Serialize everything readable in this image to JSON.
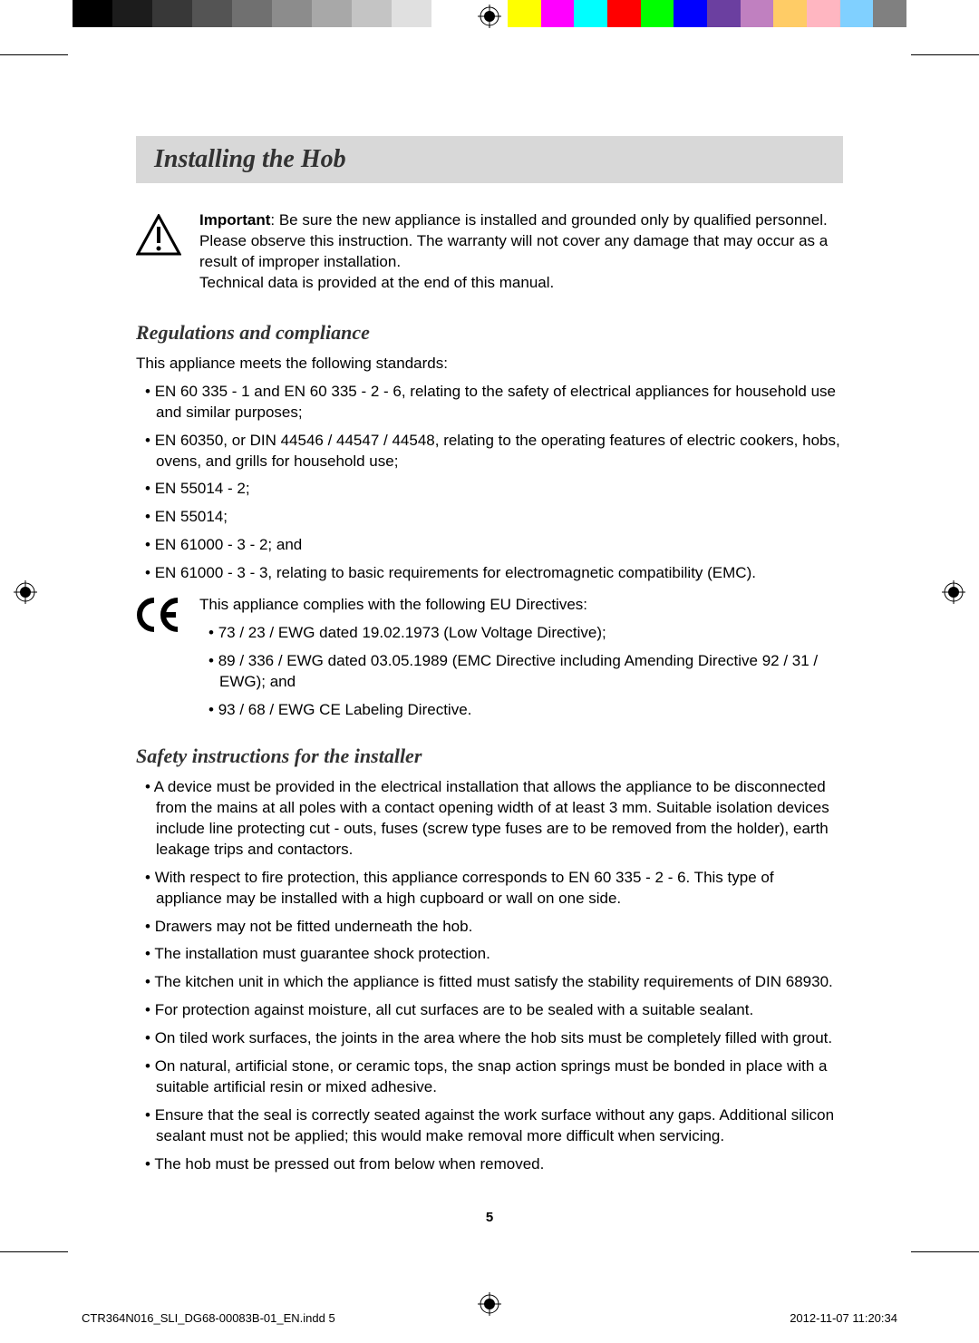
{
  "colorbar": {
    "grays": [
      "#000000",
      "#1c1c1c",
      "#383838",
      "#545454",
      "#707070",
      "#8c8c8c",
      "#a8a8a8",
      "#c4c4c4",
      "#e0e0e0",
      "#ffffff"
    ],
    "colors": [
      "#ffff00",
      "#ff00ff",
      "#00ffff",
      "#ff0000",
      "#00ff00",
      "#0000ff",
      "#6b3fa0",
      "#c080c0",
      "#ffcc66",
      "#ffb6c1",
      "#80d0ff",
      "#808080"
    ]
  },
  "title": "Installing the Hob",
  "important": {
    "label": "Important",
    "line1": ": Be sure the new appliance is installed and grounded only by qualified personnel.",
    "line2": "Please observe this instruction. The warranty will not cover any damage that may occur as a result of improper installation.",
    "line3": "Technical data is provided at the end of this manual."
  },
  "regulations": {
    "heading": "Regulations and compliance",
    "intro": "This appliance meets the following standards:",
    "items": [
      "EN 60 335 - 1 and EN 60 335 - 2 - 6, relating to the safety of electrical appliances for household use and similar purposes;",
      "EN 60350, or DIN 44546 / 44547 / 44548, relating to the operating features of electric cookers, hobs, ovens, and grills for household use;",
      "EN 55014 - 2;",
      "EN 55014;",
      "EN 61000 - 3 - 2; and",
      "EN 61000 - 3 - 3, relating to basic requirements for electromagnetic compatibility (EMC)."
    ],
    "ce_intro": "This appliance complies with the following EU Directives:",
    "ce_items": [
      "73 / 23 / EWG dated 19.02.1973 (Low Voltage Directive);",
      "89 / 336 / EWG dated 03.05.1989 (EMC Directive including Amending Directive 92 / 31 / EWG); and",
      "93 / 68 / EWG CE Labeling Directive."
    ]
  },
  "safety": {
    "heading": "Safety instructions for the installer",
    "items": [
      "A device must be provided in the electrical installation that allows the appliance to be disconnected from the mains at all poles with a contact opening width of at least 3 mm. Suitable isolation devices include line protecting cut - outs, fuses (screw type fuses are to be removed from the holder), earth leakage trips and contactors.",
      "With respect to fire protection, this appliance corresponds to EN 60 335 - 2 - 6. This type of appliance may be installed with a high cupboard or wall on one side.",
      "Drawers may not be fitted underneath the hob.",
      "The installation must guarantee shock protection.",
      "The kitchen unit in which the appliance is fitted must satisfy the stability requirements of DIN 68930.",
      "For protection against moisture, all cut surfaces are to be sealed with a suitable sealant.",
      "On tiled work surfaces, the joints in the area where the hob sits must be completely filled with grout.",
      "On natural, artificial stone, or ceramic tops, the snap action springs must be bonded in place with a suitable artificial resin or mixed adhesive.",
      "Ensure that the seal is correctly seated against the work surface without any gaps. Additional silicon sealant must not be applied; this would make removal more difficult when servicing.",
      "The hob must be pressed out from below when removed."
    ]
  },
  "page_number": "5",
  "footer": {
    "left": "CTR364N016_SLI_DG68-00083B-01_EN.indd   5",
    "right": "2012-11-07   ‭11:20:34"
  }
}
